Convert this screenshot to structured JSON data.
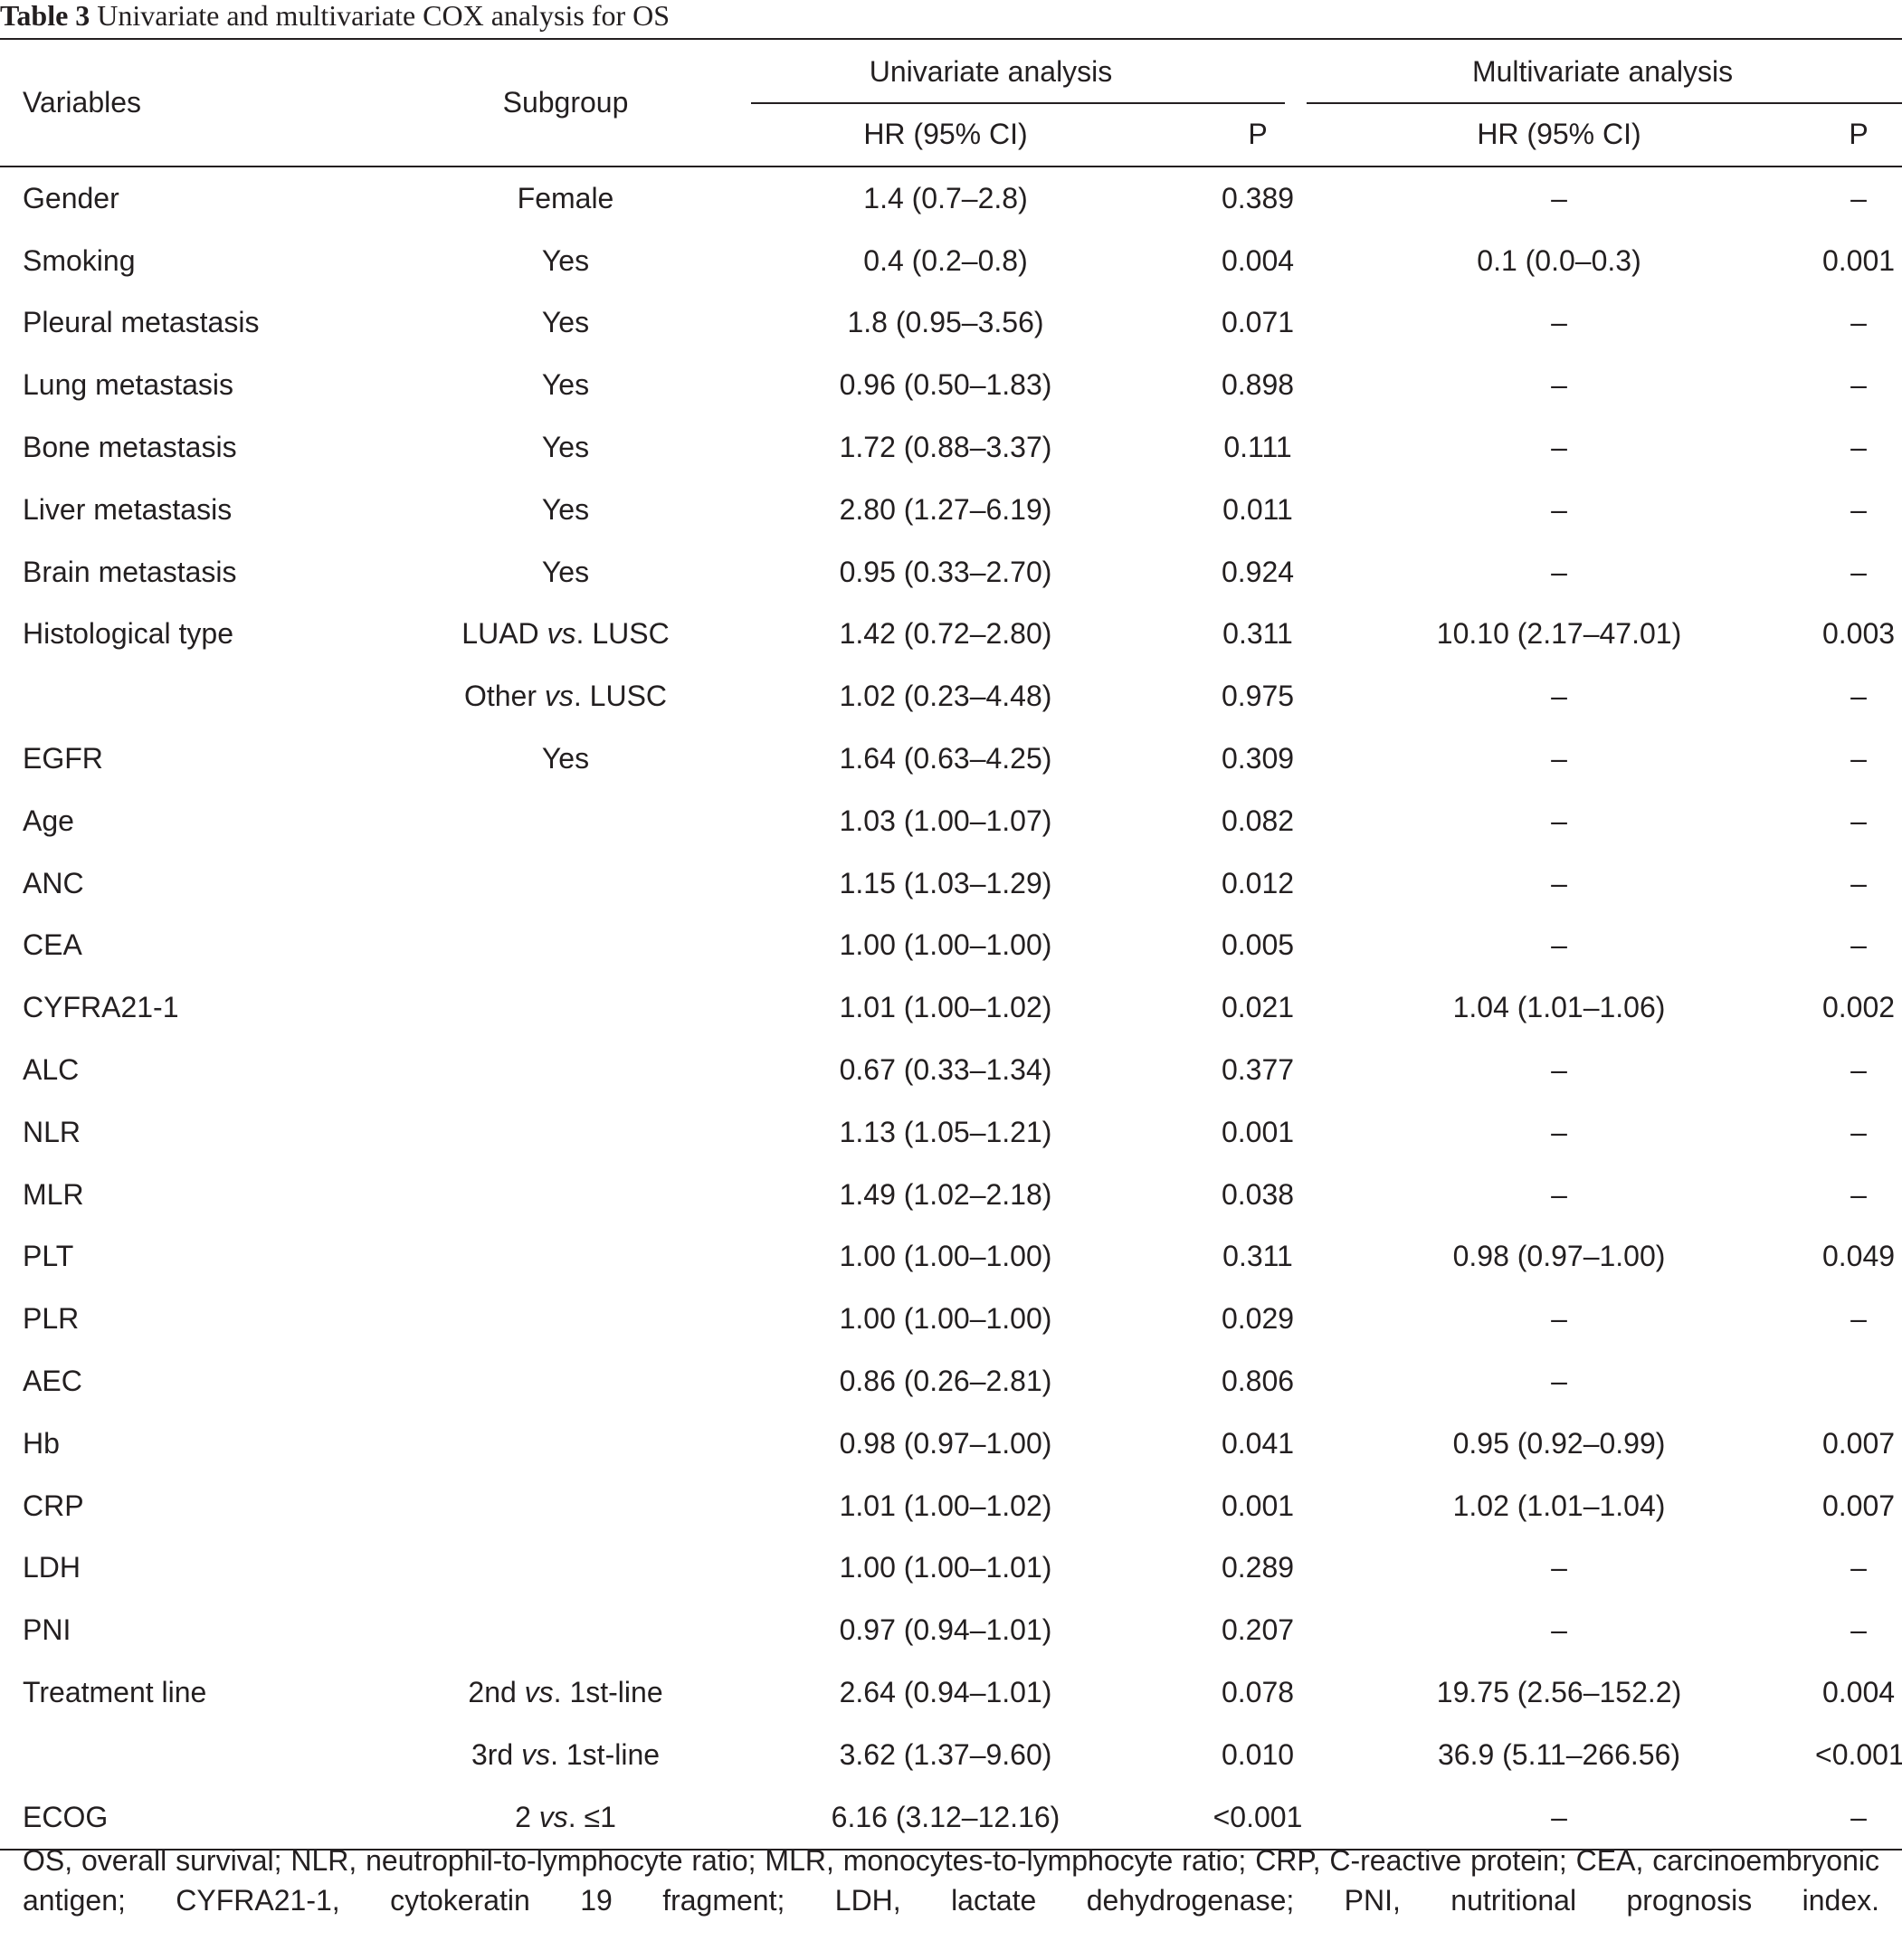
{
  "caption": {
    "label": "Table 3",
    "title": "Univariate and multivariate COX analysis for OS"
  },
  "headers": {
    "variables": "Variables",
    "subgroup": "Subgroup",
    "univariate": "Univariate analysis",
    "multivariate": "Multivariate analysis",
    "uni_hr": "HR (95% CI)",
    "uni_p": "P",
    "multi_hr": "HR (95% CI)",
    "multi_p": "P"
  },
  "rows": [
    {
      "variable": "Gender",
      "subgroup": "Female",
      "uni_hr": "1.4 (0.7–2.8)",
      "uni_p": "0.389",
      "multi_hr": "–",
      "multi_p": "–"
    },
    {
      "variable": "Smoking",
      "subgroup": "Yes",
      "uni_hr": "0.4 (0.2–0.8)",
      "uni_p": "0.004",
      "multi_hr": "0.1 (0.0–0.3)",
      "multi_p": "0.001"
    },
    {
      "variable": "Pleural metastasis",
      "subgroup": "Yes",
      "uni_hr": "1.8 (0.95–3.56)",
      "uni_p": "0.071",
      "multi_hr": "–",
      "multi_p": "–"
    },
    {
      "variable": "Lung metastasis",
      "subgroup": "Yes",
      "uni_hr": "0.96 (0.50–1.83)",
      "uni_p": "0.898",
      "multi_hr": "–",
      "multi_p": "–"
    },
    {
      "variable": "Bone metastasis",
      "subgroup": "Yes",
      "uni_hr": "1.72 (0.88–3.37)",
      "uni_p": "0.111",
      "multi_hr": "–",
      "multi_p": "–"
    },
    {
      "variable": "Liver metastasis",
      "subgroup": "Yes",
      "uni_hr": "2.80 (1.27–6.19)",
      "uni_p": "0.011",
      "multi_hr": "–",
      "multi_p": "–"
    },
    {
      "variable": "Brain metastasis",
      "subgroup": "Yes",
      "uni_hr": "0.95 (0.33–2.70)",
      "uni_p": "0.924",
      "multi_hr": "–",
      "multi_p": "–"
    },
    {
      "variable": "Histological type",
      "subgroup_pre": "LUAD ",
      "subgroup_vs": "vs",
      "subgroup_post": ". LUSC",
      "uni_hr": "1.42 (0.72–2.80)",
      "uni_p": "0.311",
      "multi_hr": "10.10 (2.17–47.01)",
      "multi_p": "0.003"
    },
    {
      "variable": "",
      "subgroup_pre": "Other ",
      "subgroup_vs": "vs",
      "subgroup_post": ". LUSC",
      "uni_hr": "1.02 (0.23–4.48)",
      "uni_p": "0.975",
      "multi_hr": "–",
      "multi_p": "–"
    },
    {
      "variable": "EGFR",
      "subgroup": "Yes",
      "uni_hr": "1.64 (0.63–4.25)",
      "uni_p": "0.309",
      "multi_hr": "–",
      "multi_p": "–"
    },
    {
      "variable": "Age",
      "subgroup": "",
      "uni_hr": "1.03 (1.00–1.07)",
      "uni_p": "0.082",
      "multi_hr": "–",
      "multi_p": "–"
    },
    {
      "variable": "ANC",
      "subgroup": "",
      "uni_hr": "1.15 (1.03–1.29)",
      "uni_p": "0.012",
      "multi_hr": "–",
      "multi_p": "–"
    },
    {
      "variable": "CEA",
      "subgroup": "",
      "uni_hr": "1.00 (1.00–1.00)",
      "uni_p": "0.005",
      "multi_hr": "–",
      "multi_p": "–"
    },
    {
      "variable": "CYFRA21-1",
      "subgroup": "",
      "uni_hr": "1.01 (1.00–1.02)",
      "uni_p": "0.021",
      "multi_hr": "1.04 (1.01–1.06)",
      "multi_p": "0.002"
    },
    {
      "variable": "ALC",
      "subgroup": "",
      "uni_hr": "0.67 (0.33–1.34)",
      "uni_p": "0.377",
      "multi_hr": "–",
      "multi_p": "–"
    },
    {
      "variable": "NLR",
      "subgroup": "",
      "uni_hr": "1.13 (1.05–1.21)",
      "uni_p": "0.001",
      "multi_hr": "–",
      "multi_p": "–"
    },
    {
      "variable": "MLR",
      "subgroup": "",
      "uni_hr": "1.49 (1.02–2.18)",
      "uni_p": "0.038",
      "multi_hr": "–",
      "multi_p": "–"
    },
    {
      "variable": "PLT",
      "subgroup": "",
      "uni_hr": "1.00 (1.00–1.00)",
      "uni_p": "0.311",
      "multi_hr": "0.98 (0.97–1.00)",
      "multi_p": "0.049"
    },
    {
      "variable": "PLR",
      "subgroup": "",
      "uni_hr": "1.00 (1.00–1.00)",
      "uni_p": "0.029",
      "multi_hr": "–",
      "multi_p": "–"
    },
    {
      "variable": "AEC",
      "subgroup": "",
      "uni_hr": "0.86 (0.26–2.81)",
      "uni_p": "0.806",
      "multi_hr": "–",
      "multi_p": ""
    },
    {
      "variable": "Hb",
      "subgroup": "",
      "uni_hr": "0.98 (0.97–1.00)",
      "uni_p": "0.041",
      "multi_hr": "0.95 (0.92–0.99)",
      "multi_p": "0.007"
    },
    {
      "variable": "CRP",
      "subgroup": "",
      "uni_hr": "1.01 (1.00–1.02)",
      "uni_p": "0.001",
      "multi_hr": "1.02 (1.01–1.04)",
      "multi_p": "0.007"
    },
    {
      "variable": "LDH",
      "subgroup": "",
      "uni_hr": "1.00 (1.00–1.01)",
      "uni_p": "0.289",
      "multi_hr": "–",
      "multi_p": "–"
    },
    {
      "variable": "PNI",
      "subgroup": "",
      "uni_hr": "0.97 (0.94–1.01)",
      "uni_p": "0.207",
      "multi_hr": "–",
      "multi_p": "–"
    },
    {
      "variable": "Treatment line",
      "subgroup_pre": "2nd ",
      "subgroup_vs": "vs",
      "subgroup_post": ". 1st-line",
      "uni_hr": "2.64 (0.94–1.01)",
      "uni_p": "0.078",
      "multi_hr": "19.75 (2.56–152.2)",
      "multi_p": "0.004"
    },
    {
      "variable": "",
      "subgroup_pre": "3rd ",
      "subgroup_vs": "vs",
      "subgroup_post": ". 1st-line",
      "uni_hr": "3.62 (1.37–9.60)",
      "uni_p": "0.010",
      "multi_hr": "36.9 (5.11–266.56)",
      "multi_p": "<0.001"
    },
    {
      "variable": "ECOG",
      "subgroup_pre": "2 ",
      "subgroup_vs": "vs",
      "subgroup_post": ". ≤1",
      "uni_hr": "6.16 (3.12–12.16)",
      "uni_p": "<0.001",
      "multi_hr": "–",
      "multi_p": "–"
    }
  ],
  "footnote": "OS, overall survival; NLR, neutrophil-to-lymphocyte ratio; MLR, monocytes-to-lymphocyte ratio; CRP, C-reactive protein; CEA, carcinoembryonic antigen; CYFRA21-1, cytokeratin 19 fragment; LDH, lactate dehydrogenase; PNI, nutritional prognosis index."
}
